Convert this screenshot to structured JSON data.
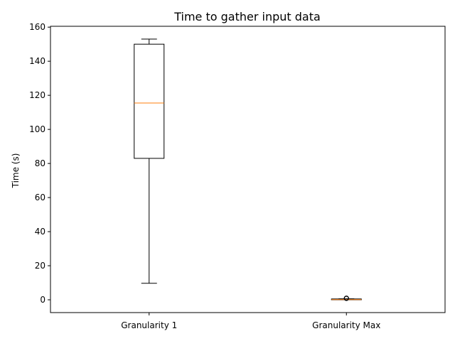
{
  "chart_data": {
    "type": "box",
    "title": "Time to gather input data",
    "xlabel": "",
    "ylabel": "Time (s)",
    "ylim": [
      -7.5,
      160.5
    ],
    "yticks": [
      0,
      20,
      40,
      60,
      80,
      100,
      120,
      140,
      160
    ],
    "categories": [
      "Granularity 1",
      "Granularity Max"
    ],
    "boxes": [
      {
        "category": "Granularity 1",
        "whisker_low": 9.7,
        "q1": 83,
        "median": 115.5,
        "q3": 150,
        "whisker_high": 153,
        "outliers": []
      },
      {
        "category": "Granularity Max",
        "whisker_low": 0.0,
        "q1": 0.0,
        "median": 0.1,
        "q3": 0.5,
        "whisker_high": 0.6,
        "outliers": [
          1.0,
          0.9,
          0.8
        ]
      }
    ],
    "grid": false,
    "colors": {
      "box": "#000000",
      "median": "#ff7f0e",
      "outlier": "#000000"
    }
  }
}
